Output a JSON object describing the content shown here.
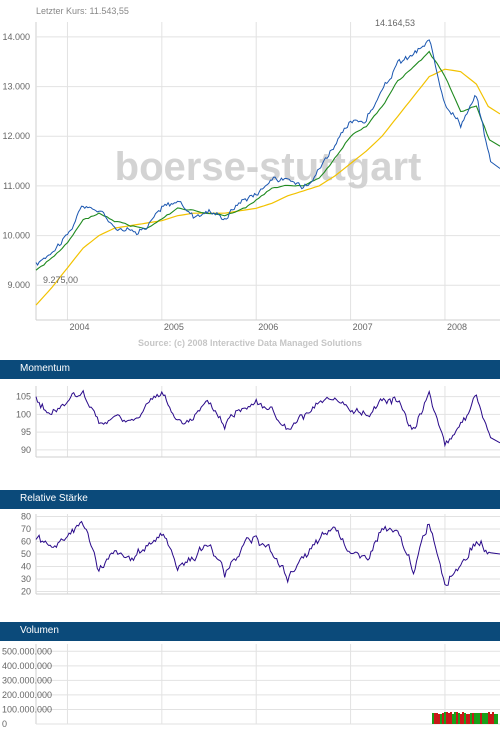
{
  "header": {
    "last_price": "Letzter Kurs: 11.543,55"
  },
  "source_note": "Source: (c) 2008 Interactive Data Managed Solutions",
  "watermark": "boerse-stuttgart",
  "panels": {
    "momentum": "Momentum",
    "rsi": "Relative Stärke",
    "volume": "Volumen"
  },
  "colors": {
    "price": "#1a56b0",
    "ma_short": "#1f8a1f",
    "ma_long": "#f2c200",
    "indicator": "#2a0a8a",
    "header_bar": "#0b4a7a",
    "volume_up": "#18a018",
    "volume_down": "#c81818"
  },
  "chart_data": [
    {
      "type": "line",
      "x": [
        "2003-09",
        "2003-11",
        "2004-01",
        "2004-03",
        "2004-05",
        "2004-07",
        "2004-09",
        "2004-11",
        "2005-01",
        "2005-03",
        "2005-05",
        "2005-07",
        "2005-09",
        "2005-11",
        "2006-01",
        "2006-03",
        "2006-05",
        "2006-07",
        "2006-09",
        "2006-11",
        "2007-01",
        "2007-03",
        "2007-05",
        "2007-07",
        "2007-09",
        "2007-11",
        "2008-01",
        "2008-03",
        "2008-05",
        "2008-07"
      ],
      "series": [
        {
          "values": [
            9400,
            9700,
            10000,
            10600,
            10500,
            10200,
            10100,
            10150,
            10550,
            10700,
            10400,
            10500,
            10350,
            10700,
            10850,
            11150,
            11100,
            11000,
            11350,
            11850,
            12250,
            12350,
            12900,
            13450,
            13650,
            13900,
            12700,
            12250,
            12800,
            11350
          ]
        },
        {
          "values": [
            9300,
            9550,
            9850,
            10300,
            10450,
            10300,
            10200,
            10150,
            10350,
            10550,
            10500,
            10450,
            10400,
            10500,
            10700,
            10950,
            11000,
            11000,
            11150,
            11550,
            12000,
            12200,
            12600,
            13100,
            13400,
            13700,
            13200,
            12500,
            12600,
            11800
          ]
        },
        {
          "values": [
            8600,
            8950,
            9350,
            9750,
            10000,
            10150,
            10200,
            10250,
            10300,
            10400,
            10450,
            10450,
            10450,
            10500,
            10550,
            10650,
            10800,
            10900,
            11000,
            11200,
            11450,
            11700,
            12000,
            12400,
            12800,
            13200,
            13350,
            13300,
            13050,
            12450
          ]
        }
      ],
      "ylim": [
        8300,
        14300
      ],
      "yticks": [
        "9.000",
        "10.000",
        "11.000",
        "12.000",
        "13.000",
        "14.000"
      ],
      "xticks": [
        "2004",
        "2005",
        "2006",
        "2007",
        "2008"
      ],
      "annotations": {
        "high": "14.164,53",
        "low": "9.275,00"
      },
      "grid": true
    },
    {
      "type": "line",
      "x": [
        "2003-09",
        "2003-11",
        "2004-01",
        "2004-03",
        "2004-05",
        "2004-07",
        "2004-09",
        "2004-11",
        "2005-01",
        "2005-03",
        "2005-05",
        "2005-07",
        "2005-09",
        "2005-11",
        "2006-01",
        "2006-03",
        "2006-05",
        "2006-07",
        "2006-09",
        "2006-11",
        "2007-01",
        "2007-03",
        "2007-05",
        "2007-07",
        "2007-09",
        "2007-11",
        "2008-01",
        "2008-03",
        "2008-05",
        "2008-07"
      ],
      "values": [
        104,
        100,
        104,
        106,
        97,
        99,
        98,
        102,
        106,
        98,
        99,
        103,
        97,
        102,
        104,
        101,
        95,
        99,
        103,
        104,
        101,
        100,
        104,
        104,
        96,
        106,
        92,
        97,
        105,
        92
      ],
      "ylim": [
        88,
        108
      ],
      "yticks": [
        "90",
        "95",
        "100",
        "105"
      ],
      "grid": true
    },
    {
      "type": "line",
      "x": [
        "2003-09",
        "2003-11",
        "2004-01",
        "2004-03",
        "2004-05",
        "2004-07",
        "2004-09",
        "2004-11",
        "2005-01",
        "2005-03",
        "2005-05",
        "2005-07",
        "2005-09",
        "2005-11",
        "2006-01",
        "2006-03",
        "2006-05",
        "2006-07",
        "2006-09",
        "2006-11",
        "2007-01",
        "2007-03",
        "2007-05",
        "2007-07",
        "2007-09",
        "2007-11",
        "2008-01",
        "2008-03",
        "2008-05",
        "2008-07"
      ],
      "values": [
        64,
        55,
        66,
        75,
        38,
        50,
        45,
        56,
        68,
        40,
        47,
        58,
        35,
        55,
        64,
        50,
        32,
        46,
        60,
        72,
        52,
        45,
        70,
        65,
        38,
        76,
        28,
        42,
        60,
        50
      ],
      "ylim": [
        18,
        82
      ],
      "yticks": [
        "20",
        "30",
        "40",
        "50",
        "60",
        "70",
        "80"
      ],
      "grid": true
    },
    {
      "type": "bar",
      "ylim": [
        0,
        550000000
      ],
      "yticks": [
        "0",
        "100.000.000",
        "200.000.000",
        "300.000.000",
        "400.000.000",
        "500.000.000"
      ],
      "grid": true
    }
  ]
}
